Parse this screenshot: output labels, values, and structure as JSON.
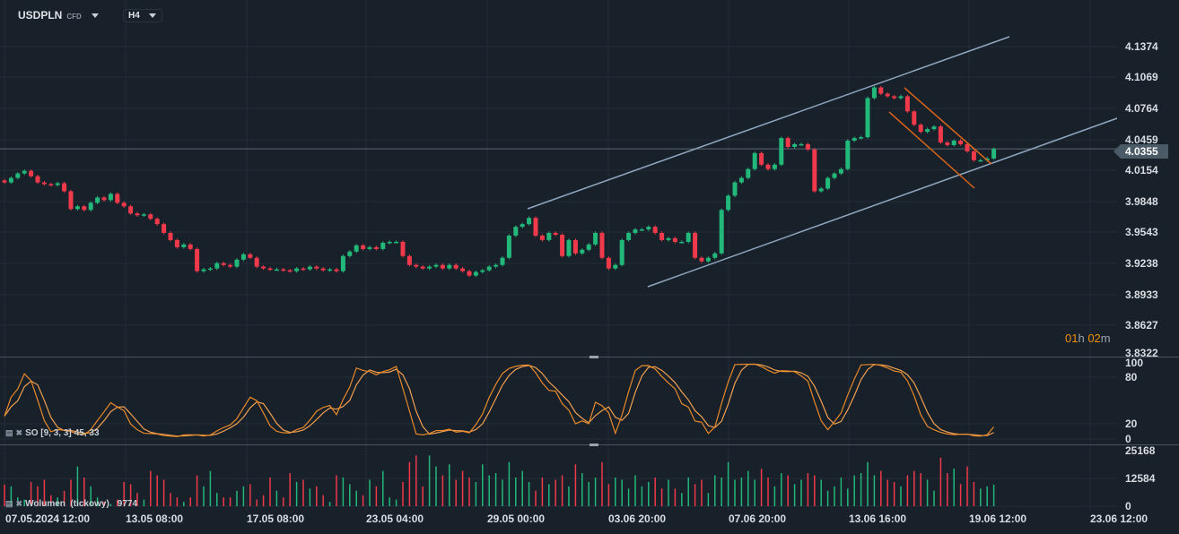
{
  "header": {
    "symbol": "USDPLN",
    "instrument_type": "CFD",
    "timeframe": "H4"
  },
  "current_price": "4.0355",
  "countdown": {
    "hours": "01",
    "h": "h",
    "minutes": "02",
    "m": "m"
  },
  "indicators": {
    "stochastic": {
      "label": "SO [9, 3, 3]",
      "values": "45, 33",
      "icons": [
        "settings-icon",
        "close-icon"
      ]
    },
    "volume": {
      "label": "Wolumen  (tickowy)",
      "value": "9774",
      "icons": [
        "settings-icon",
        "close-icon"
      ]
    }
  },
  "colors": {
    "background": "#18202a",
    "bullish": "#22b87a",
    "bearish": "#f0394a",
    "trendline": "#8fa8c0",
    "channel_orange": "#d8651a",
    "stoch_k": "#e8892a",
    "stoch_d": "#f0a050"
  },
  "chart_data": {
    "type": "candlestick",
    "price_axis": {
      "ticks": [
        "4.1374",
        "4.1069",
        "4.0764",
        "4.0459",
        "4.0154",
        "3.9848",
        "3.9543",
        "3.9238",
        "3.8933",
        "3.8627",
        "3.8322"
      ],
      "range": [
        3.8322,
        4.1374
      ]
    },
    "stoch_axis": {
      "ticks": [
        "100",
        "80",
        "20",
        "0"
      ],
      "range": [
        0,
        100
      ]
    },
    "volume_axis": {
      "ticks": [
        "25168",
        "12584",
        "0"
      ],
      "range": [
        0,
        25168
      ]
    },
    "time_axis": {
      "ticks": [
        "07.05.2024  12:00",
        "13.05  08:00",
        "17.05  08:00",
        "23.05  04:00",
        "29.05  00:00",
        "03.06  20:00",
        "07.06  20:00",
        "13.06  16:00",
        "19.06  12:00",
        "23.06  12:00"
      ]
    },
    "close": [
      4.0021,
      4.0066,
      4.011,
      4.0136,
      4.0083,
      4.0021,
      4.0004,
      3.9995,
      4.0013,
      3.9933,
      3.9756,
      3.9783,
      3.9747,
      3.9818,
      3.9871,
      3.9845,
      3.9907,
      3.9818,
      3.9783,
      3.9712,
      3.9694,
      3.9703,
      3.9659,
      3.9606,
      3.9518,
      3.9447,
      3.9376,
      3.9403,
      3.9358,
      3.9137,
      3.9155,
      3.9164,
      3.9217,
      3.9199,
      3.9182,
      3.9252,
      3.9305,
      3.927,
      3.9182,
      3.9164,
      3.9155,
      3.9155,
      3.9146,
      3.9137,
      3.9164,
      3.9155,
      3.9182,
      3.9164,
      3.9146,
      3.9155,
      3.9137,
      3.9288,
      3.9332,
      3.9394,
      3.9358,
      3.9376,
      3.9358,
      3.942,
      3.9429,
      3.9429,
      3.9288,
      3.9199,
      3.9182,
      3.9164,
      3.9182,
      3.9199,
      3.9164,
      3.9199,
      3.9164,
      3.9137,
      3.9093,
      3.9129,
      3.9146,
      3.9182,
      3.9199,
      3.927,
      3.9491,
      3.9579,
      3.9606,
      3.9668,
      3.9491,
      3.9447,
      3.9518,
      3.95,
      3.9288,
      3.9447,
      3.9314,
      3.935,
      3.9403,
      3.9518,
      3.927,
      3.9164,
      3.9199,
      3.9447,
      3.9518,
      3.9553,
      3.9553,
      3.9579,
      3.9518,
      3.9447,
      3.9465,
      3.9429,
      3.9429,
      3.9518,
      3.927,
      3.9235,
      3.927,
      3.9314,
      3.9747,
      3.9889,
      4.0021,
      4.0066,
      4.0154,
      4.0313,
      4.0198,
      4.0154,
      4.0198,
      4.0463,
      4.0375,
      4.0402,
      4.0402,
      4.0349,
      3.9933,
      3.996,
      4.0066,
      4.011,
      4.0154,
      4.0437,
      4.0463,
      4.0472,
      4.0861,
      4.0967,
      4.0905,
      4.0879,
      4.0861,
      4.0879,
      4.0729,
      4.0596,
      4.0525,
      4.0552,
      4.0578,
      4.0419,
      4.0393,
      4.0437,
      4.0402,
      4.0331,
      4.0242,
      4.0242,
      4.026,
      4.0355
    ],
    "volume": [
      9800,
      9000,
      4000,
      3000,
      11000,
      9000,
      12000,
      5000,
      4000,
      7000,
      12000,
      18000,
      13000,
      9000,
      4000,
      2000,
      1000,
      3000,
      11000,
      10000,
      6000,
      3000,
      16000,
      14000,
      12000,
      6000,
      4000,
      2000,
      4000,
      14000,
      9000,
      16000,
      6000,
      4000,
      4000,
      7000,
      9000,
      10000,
      3000,
      5000,
      13000,
      7000,
      4000,
      15000,
      11000,
      12000,
      8000,
      9000,
      5000,
      2000,
      14000,
      13000,
      10000,
      7000,
      5000,
      12000,
      9000,
      16000,
      4000,
      3000,
      11000,
      20000,
      23000,
      9000,
      23000,
      18000,
      14000,
      19000,
      12000,
      16000,
      13000,
      11000,
      19000,
      14000,
      15000,
      12000,
      20000,
      13000,
      16000,
      11000,
      7000,
      13000,
      10000,
      12000,
      14000,
      9000,
      19000,
      15000,
      11000,
      13000,
      20000,
      10000,
      13000,
      12000,
      8000,
      14000,
      9000,
      11000,
      13000,
      8000,
      12000,
      8000,
      6000,
      13000,
      10000,
      12000,
      6000,
      14000,
      13000,
      20000,
      12000,
      13000,
      16000,
      12000,
      17000,
      13000,
      9000,
      15000,
      14000,
      10000,
      12000,
      15000,
      14000,
      12000,
      7000,
      9000,
      13000,
      8000,
      14000,
      15000,
      20000,
      14000,
      16000,
      12000,
      11000,
      9000,
      14000,
      16000,
      15000,
      12000,
      7000,
      22000,
      15000,
      17000,
      10000,
      18000,
      11000,
      8000,
      9000,
      9774
    ],
    "trendlines": [
      {
        "color": "#8fa8c0"
      },
      {
        "color": "#8fa8c0"
      },
      {
        "color": "#d8651a"
      },
      {
        "color": "#d8651a"
      }
    ]
  }
}
